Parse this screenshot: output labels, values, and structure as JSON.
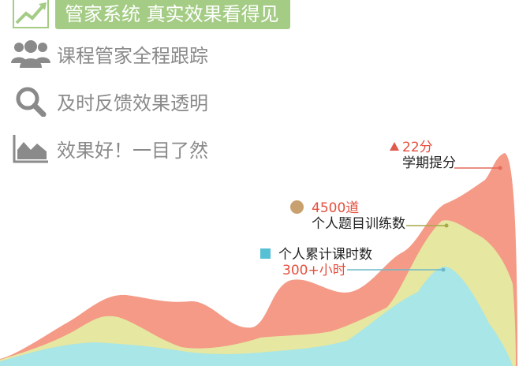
{
  "features": [
    {
      "icon": "trend-up-icon",
      "text": "管家系统  真实效果看得见"
    },
    {
      "icon": "users-icon",
      "text": "课程管家全程跟踪"
    },
    {
      "icon": "search-icon",
      "text": "及时反馈效果透明"
    },
    {
      "icon": "area-chart-icon",
      "text": "效果好！一目了然"
    }
  ],
  "annotations": {
    "score": {
      "value": "22分",
      "label": "学期提分"
    },
    "questions": {
      "value": "4500道",
      "label": "个人题目训练数"
    },
    "hours": {
      "label": "个人累计课时数",
      "value": "300+小时"
    }
  },
  "colors": {
    "accent_green": "#a4cc85",
    "salmon": "#f49a86",
    "yellow": "#e6e7a1",
    "cyan": "#a8e6e7",
    "red_text": "#e54f3e"
  }
}
